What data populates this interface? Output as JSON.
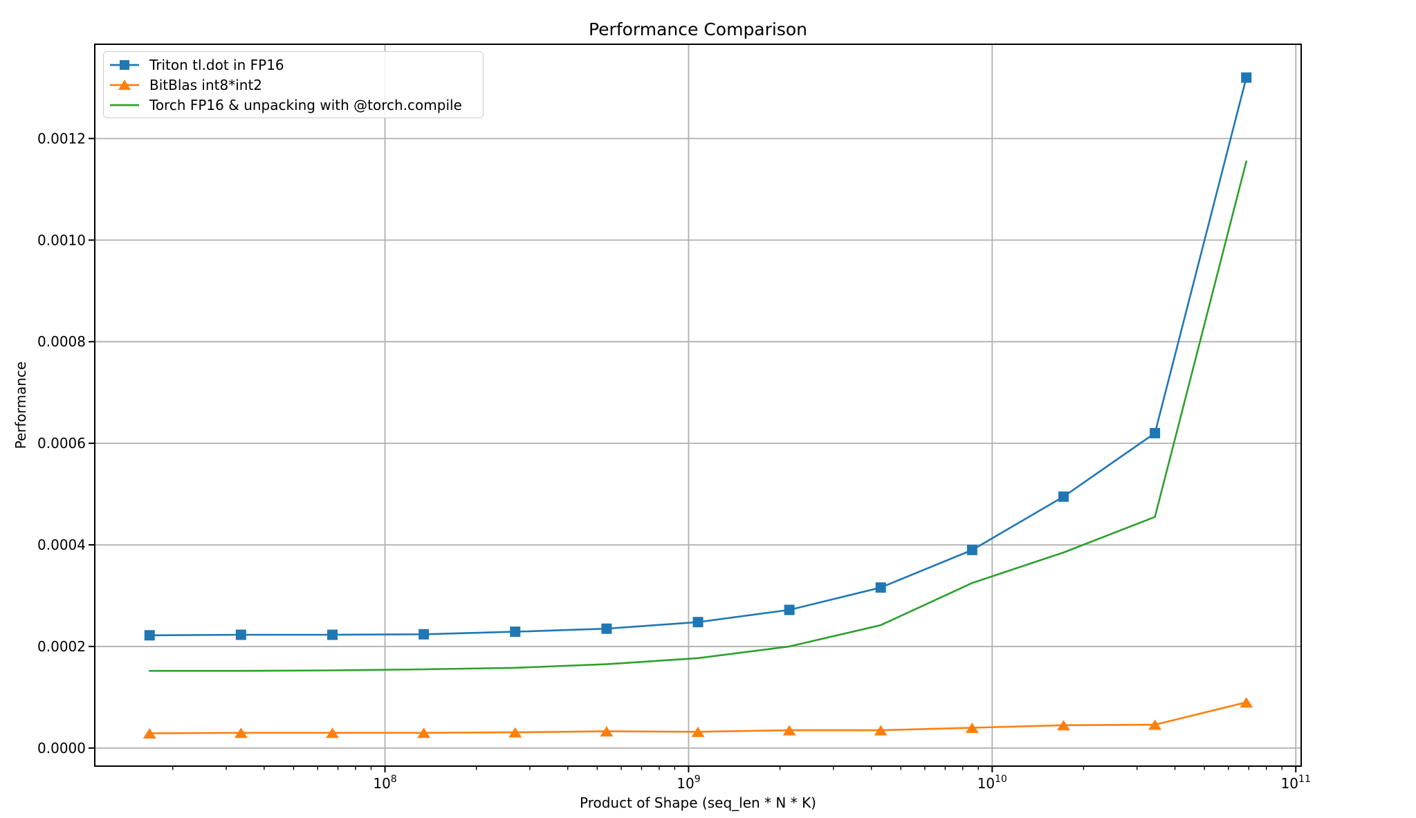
{
  "chart_data": {
    "type": "line",
    "title": "Performance Comparison",
    "xlabel": "Product of Shape (seq_len * N * K)",
    "ylabel": "Performance",
    "x_scale": "log",
    "grid": true,
    "legend_position": "upper left",
    "x": [
      16777216,
      33554432,
      67108864,
      134217728,
      268435456,
      536870912,
      1073741824,
      2147483648,
      4294967296,
      8589934592,
      17179869184,
      34359738368,
      68719476736
    ],
    "series": [
      {
        "name": "Triton tl.dot in FP16",
        "color": "#1f77b4",
        "marker": "square",
        "values": [
          0.000222,
          0.000223,
          0.000223,
          0.000224,
          0.000229,
          0.000235,
          0.000248,
          0.000272,
          0.000316,
          0.00039,
          0.000495,
          0.00062,
          0.00132
        ]
      },
      {
        "name": "BitBlas int8*int2",
        "color": "#ff7f0e",
        "marker": "triangle",
        "values": [
          2.9e-05,
          3e-05,
          3e-05,
          3e-05,
          3.1e-05,
          3.3e-05,
          3.2e-05,
          3.5e-05,
          3.5e-05,
          4e-05,
          4.5e-05,
          4.6e-05,
          9e-05
        ]
      },
      {
        "name": "Torch FP16 & unpacking with @torch.compile",
        "color": "#2ca02c",
        "marker": "none",
        "values": [
          0.000152,
          0.000152,
          0.000153,
          0.000155,
          0.000158,
          0.000165,
          0.000177,
          0.0002,
          0.000242,
          0.000325,
          0.000385,
          0.000455,
          0.001155
        ]
      }
    ],
    "x_tick_exponents": [
      8,
      9,
      10,
      11
    ],
    "x_tick_base": "10",
    "y_ticks": [
      "0.0000",
      "0.0002",
      "0.0004",
      "0.0006",
      "0.0008",
      "0.0010",
      "0.0012"
    ],
    "y_tick_values": [
      0,
      0.0002,
      0.0004,
      0.0006,
      0.0008,
      0.001,
      0.0012
    ],
    "xlim_log10": [
      7.0441,
      11.0177
    ],
    "ylim": [
      -3.56e-05,
      0.0013856
    ],
    "grid_color": "#b0b0b0",
    "spine_color": "#000000",
    "tick_color": "#000000",
    "background_color": "#ffffff"
  }
}
